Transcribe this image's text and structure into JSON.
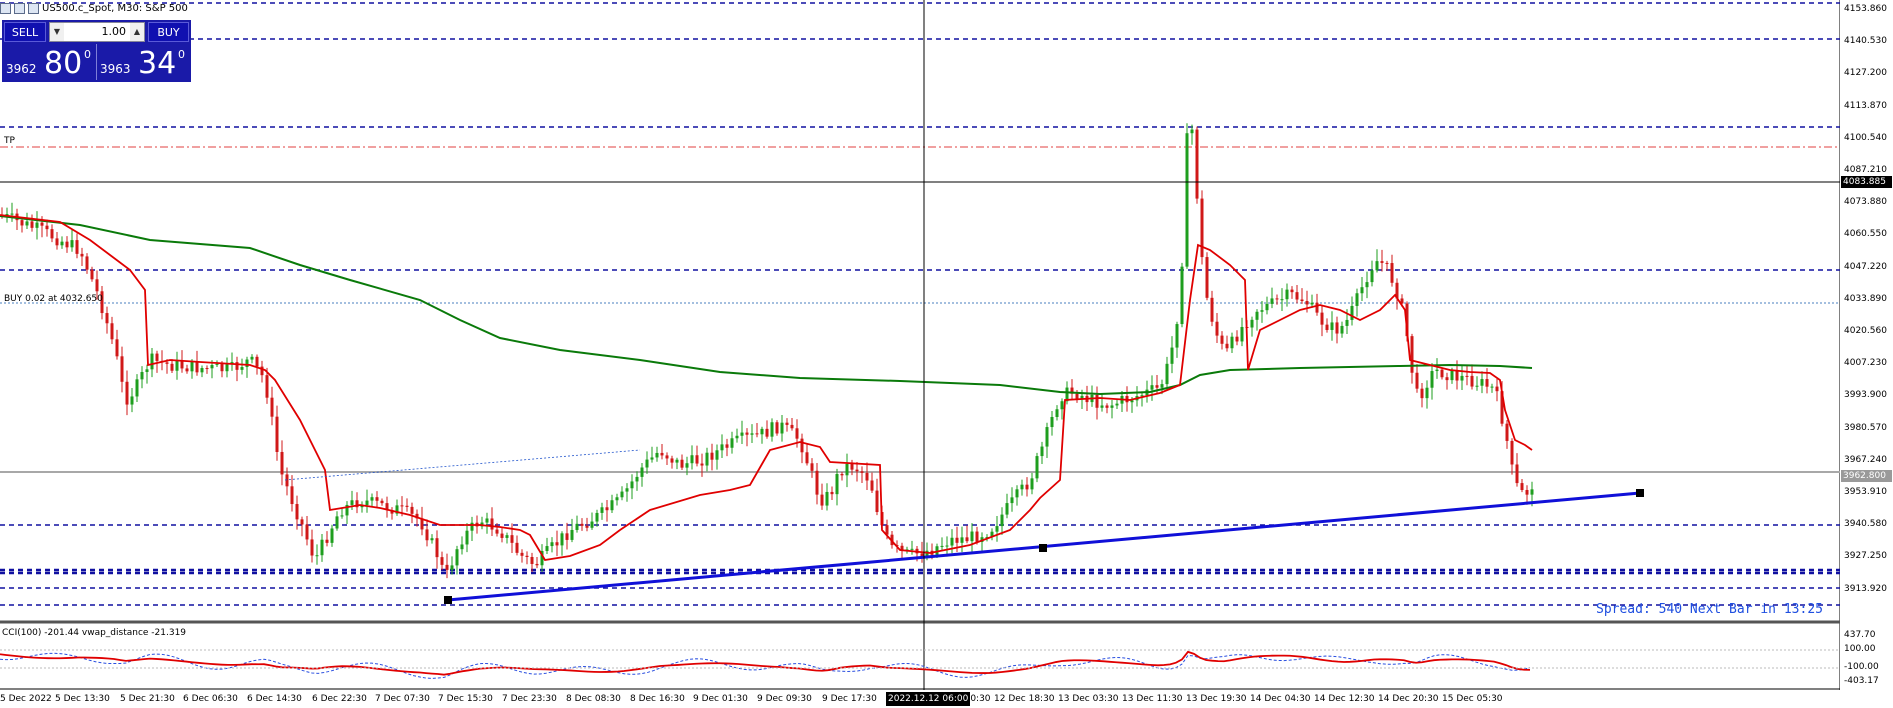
{
  "header": {
    "title": "US500.c_Spot, M30:  S&P 500"
  },
  "one_click": {
    "sell_label": "SELL",
    "buy_label": "BUY",
    "lot_value": "1.00",
    "sell_price_small": "3962",
    "sell_price_big": "80",
    "sell_price_sup": "0",
    "buy_price_small": "3963",
    "buy_price_big": "34",
    "buy_price_sup": "0"
  },
  "chart_labels": {
    "tp_label": "TP",
    "buy_order_label": "BUY 0.02 at 4032.650",
    "spread_info": "Spread: 540 Next Bar in 13:25",
    "indicator_label": "CCI(100) -201.44  vwap_distance -21.319"
  },
  "price_axis": {
    "labels": [
      "4153.860",
      "4140.530",
      "4127.200",
      "4113.870",
      "4100.540",
      "4087.210",
      "4073.880",
      "4060.550",
      "4047.220",
      "4033.890",
      "4020.560",
      "4007.230",
      "3993.900",
      "3980.570",
      "3967.240",
      "3953.910",
      "3940.580",
      "3927.250",
      "3913.920"
    ],
    "crosshair_price": "4083.885",
    "current_price": "3962.800",
    "indicator_labels": [
      "437.70",
      "100.00",
      "-100.00",
      "-403.17"
    ]
  },
  "time_axis": {
    "labels": [
      "5 Dec 2022",
      "5 Dec 13:30",
      "5 Dec 21:30",
      "6 Dec 06:30",
      "6 Dec 14:30",
      "6 Dec 22:30",
      "7 Dec 07:30",
      "7 Dec 15:30",
      "7 Dec 23:30",
      "8 Dec 08:30",
      "8 Dec 16:30",
      "9 Dec 01:30",
      "9 Dec 09:30",
      "9 Dec 17:30",
      "12 Dec 10:30",
      "12 Dec 18:30",
      "13 Dec 03:30",
      "13 Dec 11:30",
      "13 Dec 19:30",
      "14 Dec 04:30",
      "14 Dec 12:30",
      "14 Dec 20:30",
      "15 Dec 05:30"
    ],
    "crosshair_time": "2022.12.12 06:00"
  },
  "colors": {
    "level_line": "#1010a0",
    "tp_line": "#e04040",
    "vwap_red": "#e00000",
    "ma_green": "#0a7a0a",
    "trendline": "#1010d8",
    "one_click_bg": "#1a1aa8"
  }
}
